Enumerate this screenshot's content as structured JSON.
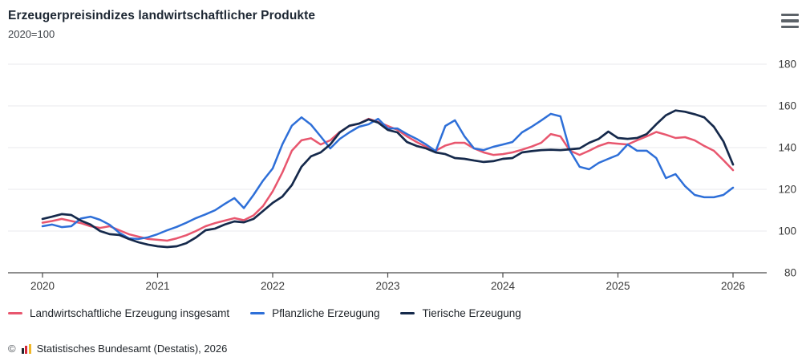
{
  "header": {
    "title": "Erzeugerpreisindizes landwirtschaftlicher Produkte",
    "subtitle": "2020=100",
    "menu_icon": "hamburger-menu"
  },
  "footer": {
    "copyright_symbol": "©",
    "logo_icon": "destatis-bar-chart-logo",
    "source": "Statistisches Bundesamt (Destatis), 2026"
  },
  "chart_data": {
    "type": "line",
    "title": "Erzeugerpreisindizes landwirtschaftlicher Produkte",
    "subtitle": "2020=100",
    "x_unit": "month",
    "x_start": "2020-01",
    "x_end": "2026-01",
    "x_ticks": [
      "2020",
      "2021",
      "2022",
      "2023",
      "2024",
      "2025",
      "2026"
    ],
    "y_ticks": [
      80,
      100,
      120,
      140,
      160,
      180
    ],
    "ylim": [
      80,
      180
    ],
    "grid": "horizontal",
    "legend_position": "bottom",
    "axis_color": "#4a4a4a",
    "grid_color": "#e9eaec",
    "tick_label_color": "#3a3a3a",
    "series": [
      {
        "name": "Landwirtschaftliche Erzeugung insgesamt",
        "color": "#e8566e",
        "stroke_width": 2.5,
        "values": [
          104.0,
          104.8,
          105.8,
          104.8,
          103.8,
          102.3,
          101.5,
          102.3,
          100.4,
          98.5,
          97.3,
          96.2,
          95.8,
          95.4,
          96.5,
          98.0,
          100.0,
          102.3,
          103.8,
          105.0,
          106.2,
          105.2,
          107.5,
          112.0,
          119.0,
          128.0,
          138.5,
          143.5,
          144.5,
          141.5,
          143.5,
          147.5,
          150.4,
          151.5,
          153.8,
          152.3,
          150.4,
          148.5,
          145.4,
          142.7,
          140.4,
          138.5,
          141.0,
          142.3,
          142.3,
          139.6,
          137.7,
          136.5,
          136.9,
          137.7,
          139.0,
          140.5,
          142.3,
          146.5,
          145.4,
          138.5,
          136.5,
          138.5,
          140.8,
          142.3,
          141.9,
          141.5,
          143.5,
          145.4,
          147.5,
          146.2,
          144.6,
          145.0,
          143.5,
          140.8,
          138.5,
          134.0,
          129.2
        ]
      },
      {
        "name": "Pflanzliche Erzeugung",
        "color": "#2e6fd8",
        "stroke_width": 2.5,
        "values": [
          102.3,
          103.1,
          101.9,
          102.3,
          106.0,
          106.9,
          105.4,
          103.0,
          99.2,
          96.5,
          96.2,
          97.0,
          98.5,
          100.4,
          102.0,
          104.0,
          106.2,
          108.0,
          110.0,
          113.0,
          115.8,
          111.0,
          117.3,
          124.2,
          130.0,
          141.5,
          150.5,
          154.5,
          151.0,
          145.4,
          139.6,
          144.2,
          147.3,
          150.0,
          151.2,
          153.8,
          149.2,
          149.2,
          146.5,
          144.2,
          141.5,
          138.3,
          150.4,
          153.1,
          145.4,
          139.6,
          138.8,
          140.4,
          141.5,
          142.7,
          147.3,
          150.0,
          153.0,
          156.2,
          155.0,
          138.5,
          130.8,
          129.6,
          132.7,
          134.6,
          136.5,
          141.5,
          138.5,
          138.5,
          135.0,
          125.4,
          127.3,
          121.5,
          117.3,
          116.2,
          116.2,
          117.3,
          120.8
        ]
      },
      {
        "name": "Tierische Erzeugung",
        "color": "#15294b",
        "stroke_width": 2.7,
        "values": [
          105.8,
          106.9,
          108.1,
          107.7,
          105.0,
          103.1,
          100.0,
          98.5,
          98.1,
          96.2,
          94.6,
          93.5,
          92.7,
          92.3,
          92.7,
          94.2,
          96.9,
          100.4,
          101.2,
          103.1,
          104.6,
          104.2,
          105.8,
          109.6,
          113.5,
          116.5,
          122.0,
          130.8,
          135.8,
          137.7,
          141.5,
          147.3,
          150.5,
          151.5,
          153.5,
          152.0,
          148.5,
          147.3,
          142.7,
          140.8,
          139.6,
          137.7,
          136.9,
          135.0,
          134.6,
          133.8,
          133.1,
          133.5,
          134.6,
          135.0,
          137.7,
          138.3,
          138.8,
          139.0,
          138.8,
          139.2,
          139.6,
          142.3,
          144.2,
          147.7,
          144.6,
          144.2,
          144.6,
          146.5,
          151.2,
          155.5,
          157.8,
          157.2,
          156.0,
          154.5,
          150.0,
          143.0,
          131.9
        ]
      }
    ]
  }
}
